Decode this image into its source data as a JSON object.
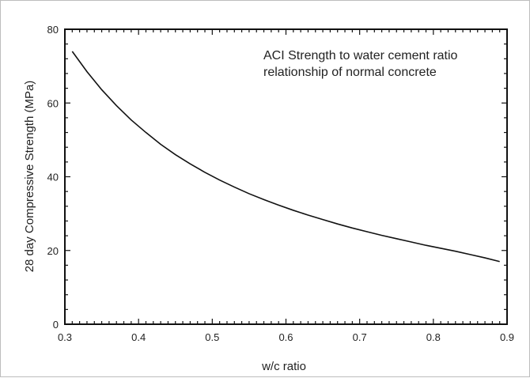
{
  "chart_data": {
    "type": "line",
    "title": "",
    "annotation": [
      "ACI Strength to water cement ratio",
      "relationship of normal concrete"
    ],
    "xlabel": "w/c ratio",
    "ylabel": "28 day Compressive Strength (MPa)",
    "xlim": [
      0.3,
      0.9
    ],
    "ylim": [
      0,
      80
    ],
    "xticks": [
      0.3,
      0.4,
      0.5,
      0.6,
      0.7,
      0.8,
      0.9
    ],
    "yticks": [
      0,
      20,
      40,
      60,
      80
    ],
    "xtick_labels": [
      "0.3",
      "0.4",
      "0.5",
      "0.6",
      "0.7",
      "0.8",
      "0.9"
    ],
    "ytick_labels": [
      "0",
      "20",
      "40",
      "60",
      "80"
    ],
    "grid": false,
    "series": [
      {
        "x": [
          0.31,
          0.33,
          0.35,
          0.37,
          0.39,
          0.41,
          0.43,
          0.45,
          0.47,
          0.49,
          0.51,
          0.53,
          0.55,
          0.57,
          0.59,
          0.61,
          0.63,
          0.65,
          0.67,
          0.69,
          0.71,
          0.73,
          0.75,
          0.77,
          0.79,
          0.81,
          0.83,
          0.85,
          0.87,
          0.89
        ],
        "y": [
          74.0,
          68.5,
          63.6,
          59.3,
          55.4,
          52.0,
          48.8,
          46.0,
          43.5,
          41.2,
          39.1,
          37.2,
          35.4,
          33.8,
          32.3,
          30.9,
          29.6,
          28.4,
          27.2,
          26.1,
          25.1,
          24.1,
          23.2,
          22.3,
          21.4,
          20.6,
          19.8,
          18.9,
          18.0,
          17.0
        ],
        "color": "#111111"
      }
    ]
  }
}
